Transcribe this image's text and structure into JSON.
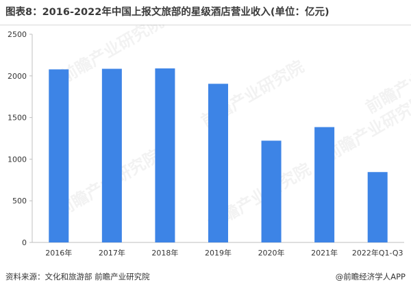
{
  "header": {
    "title": "图表8：2016-2022年中国上报文旅部的星级酒店营业收入(单位：亿元)"
  },
  "footer": {
    "source": "资料来源：文化和旅游部 前瞻产业研究院",
    "brand": "@前瞻经济学人APP"
  },
  "watermark": {
    "text": "前瞻产业研究院"
  },
  "chart_data": {
    "type": "bar",
    "categories": [
      "2016年",
      "2017年",
      "2018年",
      "2019年",
      "2020年",
      "2021年",
      "2022年Q1-Q3"
    ],
    "values": [
      2078,
      2085,
      2090,
      1905,
      1222,
      1385,
      845
    ],
    "ylim": [
      0,
      2500
    ],
    "yticks": [
      0,
      500,
      1000,
      1500,
      2000,
      2500
    ],
    "grid": false,
    "bar_color": "#3d84e6",
    "axis_color": "#bfbfbf"
  }
}
